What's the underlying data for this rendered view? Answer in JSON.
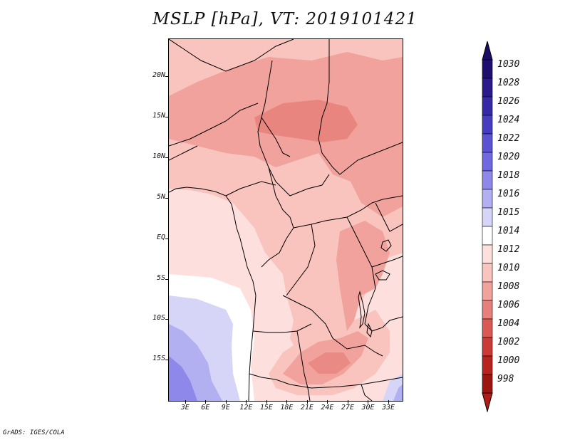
{
  "title": "MSLP [hPa], VT: 2019101421",
  "axes": {
    "lat_ticks": [
      {
        "label": "20N",
        "lat": 20
      },
      {
        "label": "15N",
        "lat": 15
      },
      {
        "label": "10N",
        "lat": 10
      },
      {
        "label": "5N",
        "lat": 5
      },
      {
        "label": "EQ",
        "lat": 0
      },
      {
        "label": "5S",
        "lat": -5
      },
      {
        "label": "10S",
        "lat": -10
      },
      {
        "label": "15S",
        "lat": -15
      }
    ],
    "lon_ticks": [
      {
        "label": "3E",
        "lon": 3
      },
      {
        "label": "6E",
        "lon": 6
      },
      {
        "label": "9E",
        "lon": 9
      },
      {
        "label": "12E",
        "lon": 12
      },
      {
        "label": "15E",
        "lon": 15
      },
      {
        "label": "18E",
        "lon": 18
      },
      {
        "label": "21E",
        "lon": 21
      },
      {
        "label": "24E",
        "lon": 24
      },
      {
        "label": "27E",
        "lon": 27
      },
      {
        "label": "30E",
        "lon": 30
      },
      {
        "label": "33E",
        "lon": 33
      }
    ],
    "lon_range": [
      0.5,
      35
    ],
    "lat_range": [
      -20,
      24.7
    ]
  },
  "colorbar": {
    "levels": [
      {
        "label": "1030",
        "color": "#1e0f6e"
      },
      {
        "label": "1028",
        "color": "#2a1a8c"
      },
      {
        "label": "1026",
        "color": "#3629a6"
      },
      {
        "label": "1024",
        "color": "#463cbf"
      },
      {
        "label": "1022",
        "color": "#5a52d2"
      },
      {
        "label": "1020",
        "color": "#7068e0"
      },
      {
        "label": "1018",
        "color": "#8e88ea"
      },
      {
        "label": "1016",
        "color": "#b3b0f2"
      },
      {
        "label": "1015",
        "color": "#d6d5f8"
      },
      {
        "label": "1014",
        "color": "#ffffff"
      },
      {
        "label": "1012",
        "color": "#fde0dd"
      },
      {
        "label": "1010",
        "color": "#f9c3be"
      },
      {
        "label": "1008",
        "color": "#f2a29c"
      },
      {
        "label": "1006",
        "color": "#e6807a"
      },
      {
        "label": "1004",
        "color": "#d95a55"
      },
      {
        "label": "1002",
        "color": "#cc3a37"
      },
      {
        "label": "1000",
        "color": "#b8231f"
      },
      {
        "label": "998",
        "color": "#9e1410"
      }
    ],
    "top_color": "#1a0b66",
    "bottom_color": "#b01d16"
  },
  "credit": "GrADS: IGES/COLA"
}
